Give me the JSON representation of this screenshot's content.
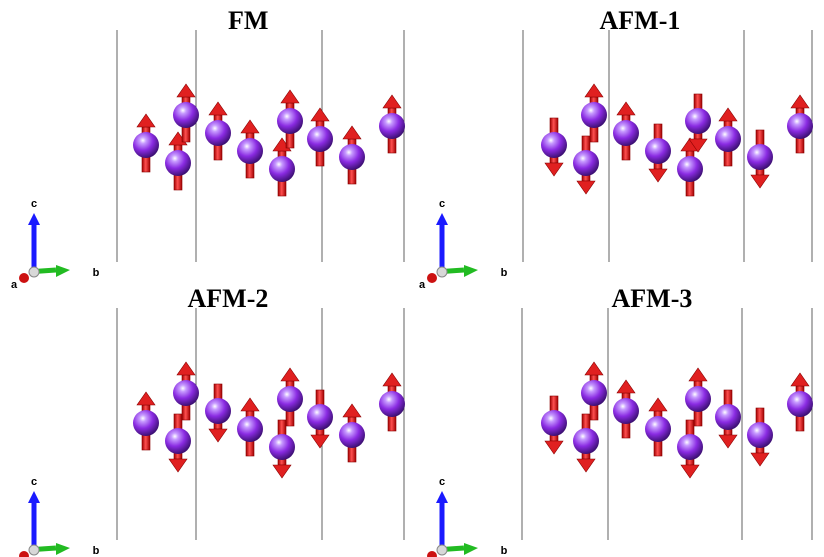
{
  "panels": [
    {
      "title": "FM",
      "spins": [
        "up",
        "up",
        "up",
        "up",
        "up",
        "up",
        "up",
        "up",
        "up",
        "up"
      ]
    },
    {
      "title": "AFM-1",
      "spins": [
        "down",
        "down",
        "up",
        "up",
        "down",
        "up",
        "down",
        "up",
        "down",
        "up"
      ]
    },
    {
      "title": "AFM-2",
      "spins": [
        "up",
        "down",
        "up",
        "down",
        "up",
        "down",
        "up",
        "down",
        "up",
        "up"
      ]
    },
    {
      "title": "AFM-3",
      "spins": [
        "down",
        "down",
        "up",
        "up",
        "up",
        "down",
        "up",
        "down",
        "down",
        "up"
      ]
    }
  ],
  "axes": {
    "c": "c",
    "b": "b",
    "a": "a"
  },
  "colors": {
    "atom": "#8a2be2",
    "arrow": "#e02020",
    "c_axis": "#1a1aff",
    "b_axis": "#22bb22",
    "a_axis": "#cc1111",
    "cell_line": "#606060"
  }
}
